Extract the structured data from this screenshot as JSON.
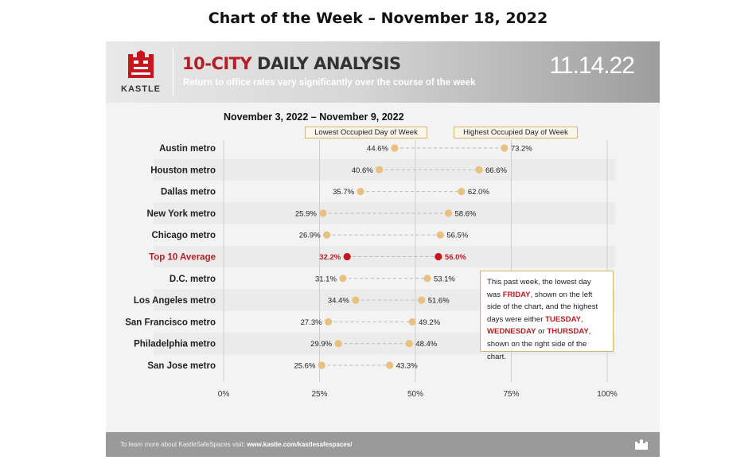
{
  "page_title": "Chart of the Week – November 18, 2022",
  "header": {
    "logo_text": "KASTLE",
    "title_accent": "10-CITY",
    "title_rest": " DAILY ANALYSIS",
    "subtitle": "Return to office rates vary significantly over the course of the week",
    "date": "11.14.22"
  },
  "date_range": "November 3, 2022 – November 9, 2022",
  "legend": {
    "low": "Lowest Occupied Day of Week",
    "high": "Highest Occupied Day of Week"
  },
  "note": {
    "p1": "This past week, the lowest day was ",
    "friday": "FRIDAY",
    "p2": ", shown on the left side of the chart, and the highest days were either ",
    "tuesday": "TUESDAY",
    "p3": ", ",
    "wednesday": "WEDNESDAY",
    "p4": " or ",
    "thursday": "THURSDAY",
    "p5": ", shown on the right side of the chart."
  },
  "footer": {
    "text": "To learn more about KastleSafeSpaces visit: ",
    "url": "www.kastle.com/kastlesafespaces/"
  },
  "colors": {
    "accent": "#b51f24",
    "dot": "#e8c07f",
    "highlight_dot": "#c8161d",
    "connector": "#bbbbbb"
  },
  "chart_data": {
    "type": "dumbbell",
    "x_ticks": [
      "0%",
      "25%",
      "50%",
      "75%",
      "100%"
    ],
    "xlim": [
      0,
      100
    ],
    "highlight_category": "Top 10 Average",
    "categories": [
      "Austin metro",
      "Houston metro",
      "Dallas metro",
      "New York metro",
      "Chicago metro",
      "Top 10 Average",
      "D.C. metro",
      "Los Angeles metro",
      "San Francisco metro",
      "Philadelphia metro",
      "San Jose metro"
    ],
    "series": [
      {
        "name": "Lowest Occupied Day of Week",
        "values": [
          44.6,
          40.6,
          35.7,
          25.9,
          26.9,
          32.2,
          31.1,
          34.4,
          27.3,
          29.9,
          25.6
        ],
        "labels": [
          "44.6%",
          "40.6%",
          "35.7%",
          "25.9%",
          "26.9%",
          "32.2%",
          "31.1%",
          "34.4%",
          "27.3%",
          "29.9%",
          "25.6%"
        ]
      },
      {
        "name": "Highest Occupied Day of Week",
        "values": [
          73.2,
          66.6,
          62.0,
          58.6,
          56.5,
          56.0,
          53.1,
          51.6,
          49.2,
          48.4,
          43.3
        ],
        "labels": [
          "73.2%",
          "66.6%",
          "62.0%",
          "58.6%",
          "56.5%",
          "56.0%",
          "53.1%",
          "51.6%",
          "49.2%",
          "48.4%",
          "43.3%"
        ]
      }
    ]
  }
}
